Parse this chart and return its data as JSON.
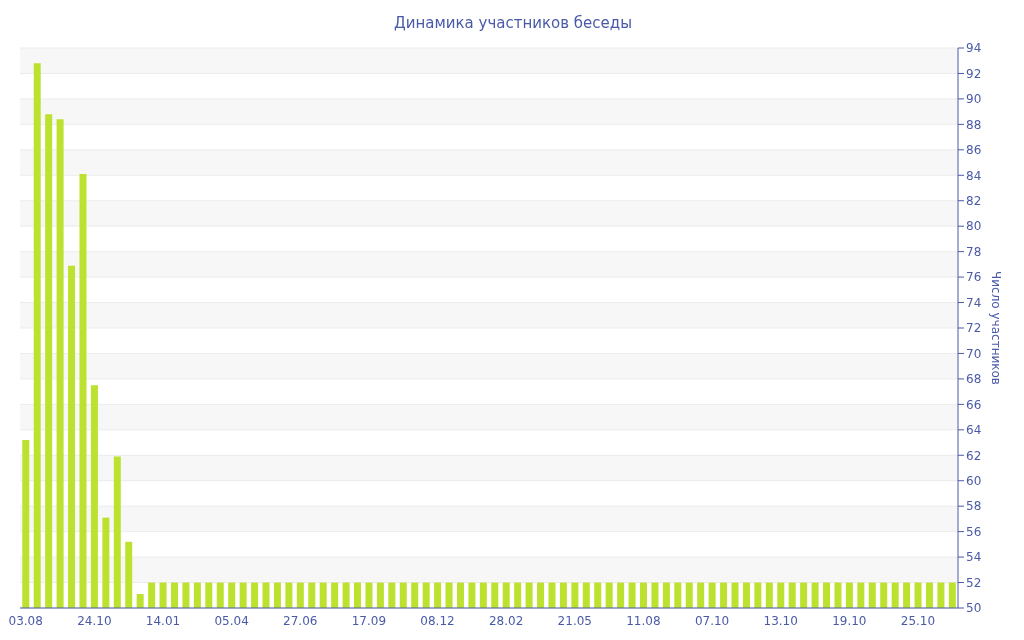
{
  "chart_data": {
    "type": "bar",
    "title": "Динамика участников беседы",
    "ylabel": "Число участников",
    "categories": [
      "03.08",
      null,
      null,
      null,
      null,
      null,
      "24.10",
      null,
      null,
      null,
      null,
      null,
      "14.01",
      null,
      null,
      null,
      null,
      null,
      "05.04",
      null,
      null,
      null,
      null,
      null,
      "27.06",
      null,
      null,
      null,
      null,
      null,
      "17.09",
      null,
      null,
      null,
      null,
      null,
      "08.12",
      null,
      null,
      null,
      null,
      null,
      "28.02",
      null,
      null,
      null,
      null,
      null,
      "21.05",
      null,
      null,
      null,
      null,
      null,
      "11.08",
      null,
      null,
      null,
      null,
      null,
      "07.10",
      null,
      null,
      null,
      null,
      null,
      "13.10",
      null,
      null,
      null,
      null,
      null,
      "19.10",
      null,
      null,
      null,
      null,
      null,
      "25.10",
      null,
      null,
      null
    ],
    "values": [
      63.2,
      92.8,
      88.8,
      88.4,
      76.9,
      84.1,
      67.5,
      57.1,
      61.9,
      55.2,
      51.1,
      52,
      52,
      52,
      52,
      52,
      52,
      52,
      52,
      52,
      52,
      52,
      52,
      52,
      52,
      52,
      52,
      52,
      52,
      52,
      52,
      52,
      52,
      52,
      52,
      52,
      52,
      52,
      52,
      52,
      52,
      52,
      52,
      52,
      52,
      52,
      52,
      52,
      52,
      52,
      52,
      52,
      52,
      52,
      52,
      52,
      52,
      52,
      52,
      52,
      52,
      52,
      52,
      52,
      52,
      52,
      52,
      52,
      52,
      52,
      52,
      52,
      52,
      52,
      52,
      52,
      52,
      52,
      52,
      52,
      52,
      52
    ],
    "color": "#bde12f",
    "ylim": [
      50,
      94
    ],
    "yticks": [
      50,
      52,
      54,
      56,
      58,
      60,
      62,
      64,
      66,
      68,
      70,
      72,
      74,
      76,
      78,
      80,
      82,
      84,
      86,
      88,
      90,
      92,
      94
    ],
    "grid": "y"
  }
}
